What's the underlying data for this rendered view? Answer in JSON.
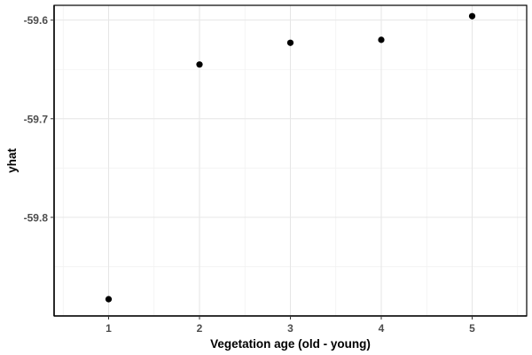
{
  "chart_data": {
    "type": "scatter",
    "title": "",
    "xlabel": "Vegetation age (old - young)",
    "ylabel": "yhat",
    "x": [
      1,
      2,
      3,
      4,
      5
    ],
    "y": [
      -59.883,
      -59.645,
      -59.623,
      -59.62,
      -59.596
    ],
    "x_ticks": [
      1,
      2,
      3,
      4,
      5
    ],
    "x_tick_labels": [
      "1",
      "2",
      "3",
      "4",
      "5"
    ],
    "y_ticks": [
      -59.8,
      -59.7,
      -59.6
    ],
    "y_tick_labels": [
      "-59.8",
      "-59.7",
      "-59.6"
    ],
    "xlim": [
      0.4,
      5.6
    ],
    "ylim": [
      -59.9,
      -59.585
    ],
    "grid": true,
    "legend": "none",
    "point_color": "#000000"
  }
}
